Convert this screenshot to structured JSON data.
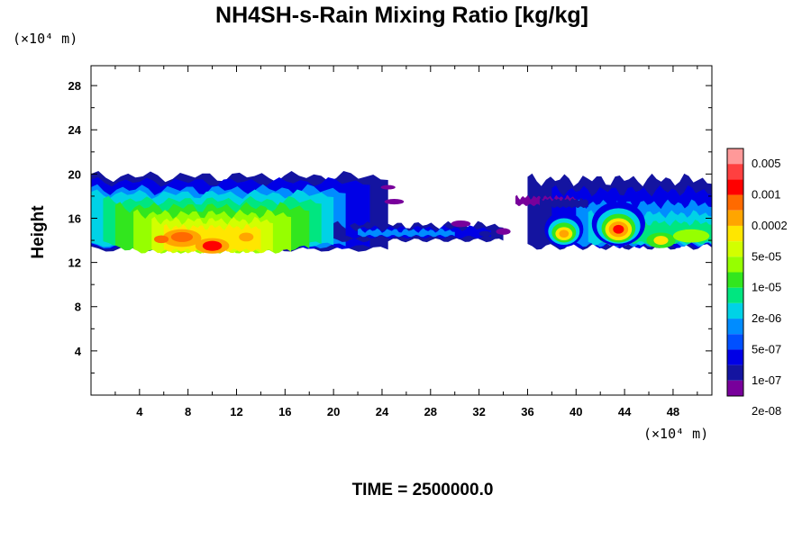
{
  "chart_data": {
    "type": "heatmap",
    "title": "NH4SH-s-Rain Mixing Ratio [kg/kg]",
    "xlabel": "",
    "ylabel": "Height",
    "x_unit": "(×10⁴ m)",
    "y_unit": "(×10⁴ m)",
    "xlim": [
      0,
      51.2
    ],
    "ylim": [
      0,
      29.8
    ],
    "x_ticks": [
      "4",
      "8",
      "12",
      "16",
      "20",
      "24",
      "28",
      "32",
      "36",
      "40",
      "44",
      "48"
    ],
    "y_ticks": [
      "4",
      "8",
      "12",
      "16",
      "20",
      "24",
      "28"
    ],
    "colorbar": {
      "labels": [
        "0.005",
        "0.001",
        "0.0002",
        "5e-05",
        "1e-05",
        "2e-06",
        "5e-07",
        "1e-07",
        "2e-08"
      ],
      "colors": [
        "#ff9999",
        "#ff4040",
        "#ff0000",
        "#ff6a00",
        "#ffa500",
        "#ffe600",
        "#d2ff00",
        "#96ff00",
        "#32e61e",
        "#00e680",
        "#00d2e6",
        "#008cff",
        "#0050ff",
        "#0000e6",
        "#1414a0",
        "#78009b"
      ]
    },
    "cloud_layer": {
      "west_band_x": [
        0,
        25
      ],
      "west_band_height": [
        12.5,
        20
      ],
      "east_band_x": [
        35,
        51.2
      ],
      "east_band_height": [
        12.8,
        19.5
      ],
      "cores": [
        {
          "x": 10,
          "height": 13.5,
          "level": "0.001"
        },
        {
          "x": 7.5,
          "height": 14.3,
          "level": "0.0002"
        },
        {
          "x": 5.8,
          "height": 14.2,
          "level": "0.0002"
        },
        {
          "x": 39,
          "height": 14.6,
          "level": "0.0002"
        },
        {
          "x": 43.5,
          "height": 15,
          "level": "0.001"
        },
        {
          "x": 47,
          "height": 14,
          "level": "5e-05"
        }
      ]
    }
  },
  "footer": {
    "time_label": "TIME = 2500000.0"
  }
}
